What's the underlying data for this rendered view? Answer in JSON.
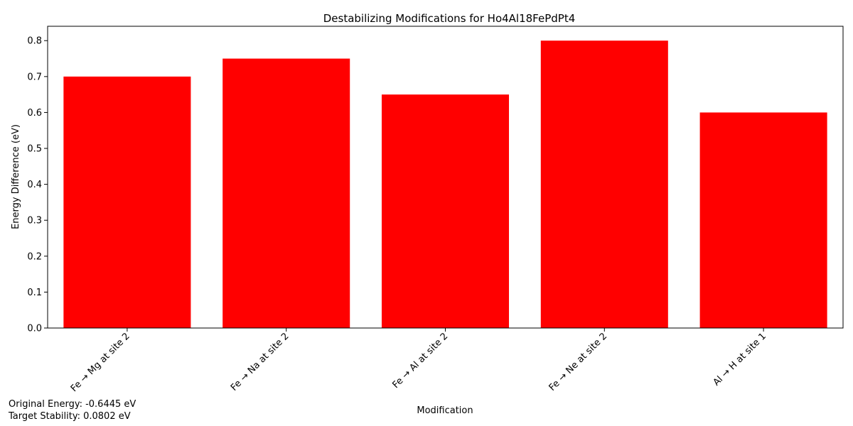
{
  "chart_data": {
    "type": "bar",
    "title": "Destabilizing Modifications for Ho4Al18FePdPt4",
    "xlabel": "Modification",
    "ylabel": "Energy Difference (eV)",
    "categories": [
      "Fe → Mg at site 2",
      "Fe → Na at site 2",
      "Fe → Al at site 2",
      "Fe → Ne at site 2",
      "Al → H at site 1"
    ],
    "values": [
      0.7,
      0.75,
      0.65,
      0.8,
      0.6
    ],
    "ylim": [
      0,
      0.84
    ],
    "yticks": [
      "0.0",
      "0.1",
      "0.2",
      "0.3",
      "0.4",
      "0.5",
      "0.6",
      "0.7",
      "0.8"
    ],
    "bar_color": "#ff0000",
    "grid": false,
    "legend": "none"
  },
  "annotations": {
    "original_energy": "Original Energy: -0.6445 eV",
    "target_stability": "Target Stability: 0.0802 eV"
  }
}
